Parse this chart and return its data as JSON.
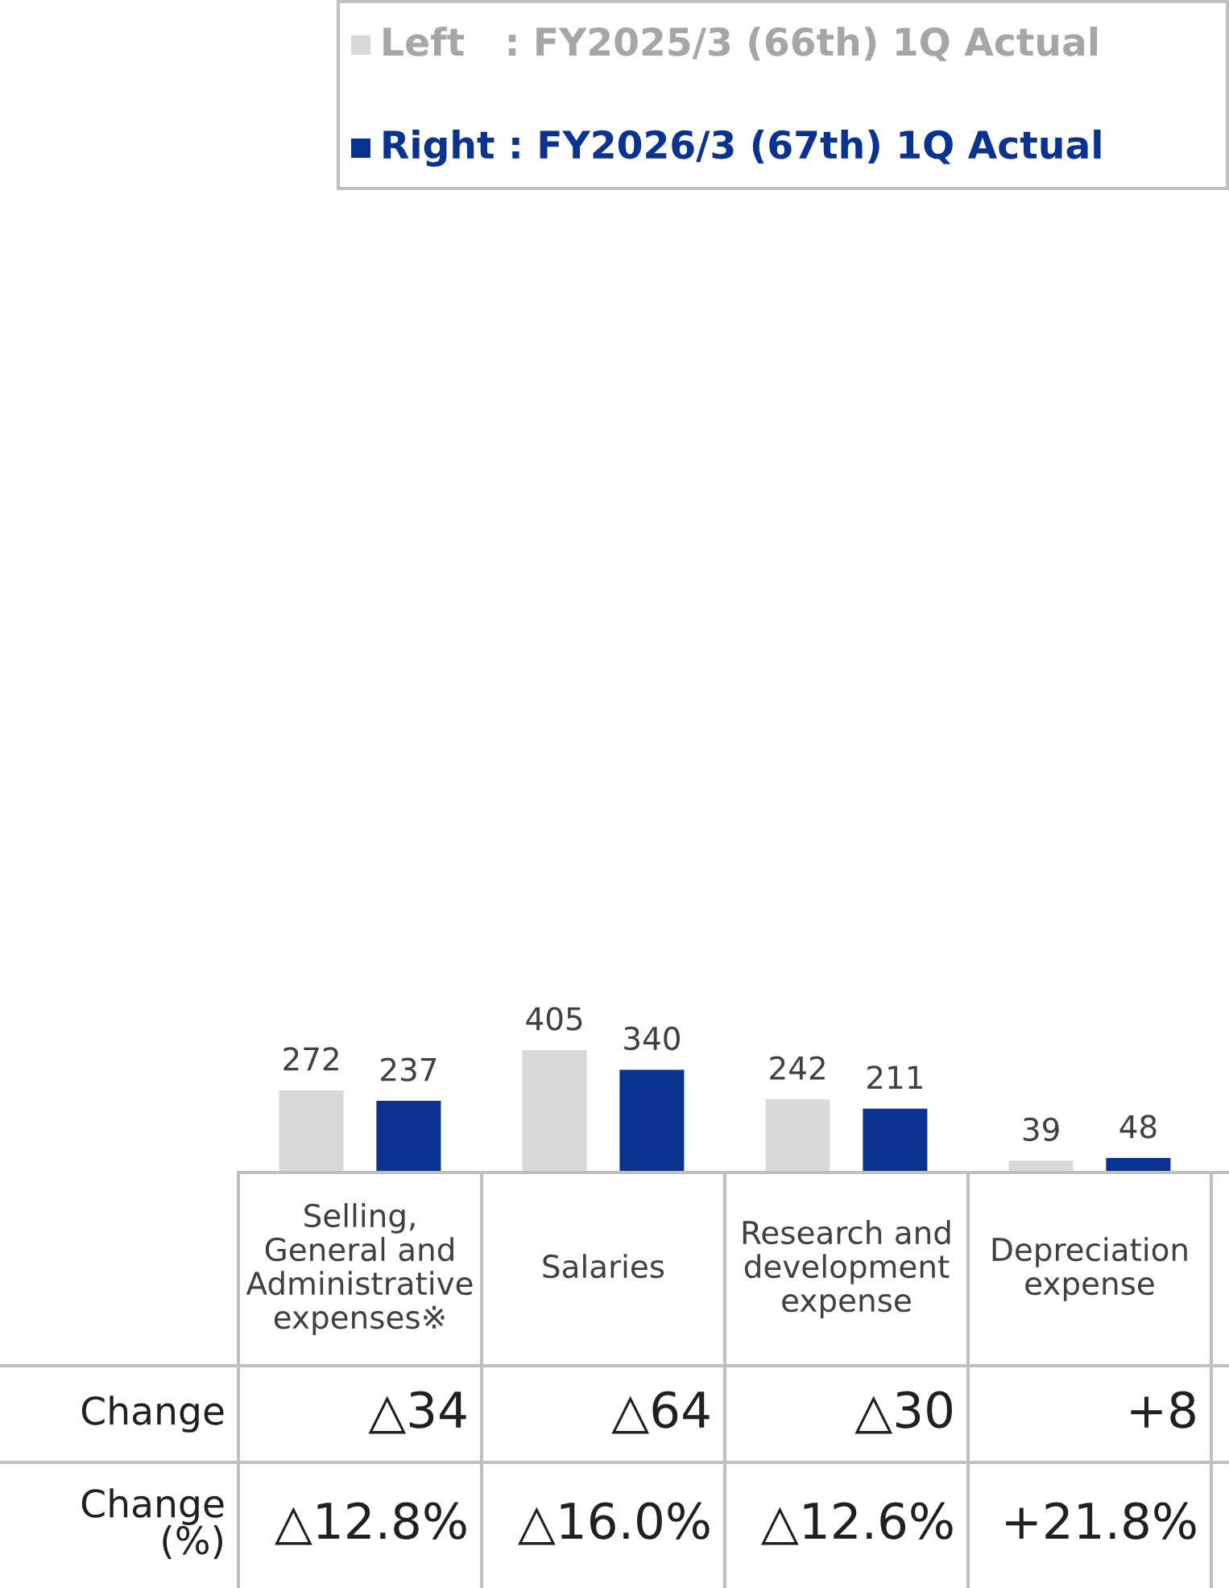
{
  "chart_data": {
    "type": "bar",
    "categories": [
      "Selling,\nGeneral and\nAdministrative\nexpenses※",
      "Salaries",
      "Research and\ndevelopment\nexpense",
      "Depreciation\nexpense"
    ],
    "series": [
      {
        "name": "Left   : FY2025/3 (66th) 1Q Actual",
        "color": "#d9d9d9",
        "values": [
          272,
          405,
          242,
          39
        ]
      },
      {
        "name": "Right : FY2026/3 (67th) 1Q Actual",
        "color": "#0a3290",
        "values": [
          237,
          340,
          211,
          48
        ]
      }
    ],
    "data_labels": true,
    "legend": "top right",
    "annotations": [
      "Change",
      "△34",
      "△64",
      "△30",
      "+8",
      "Change\n(%)",
      "△12.8%",
      "△16.0%",
      "△12.6%",
      "+21.8%"
    ]
  }
}
